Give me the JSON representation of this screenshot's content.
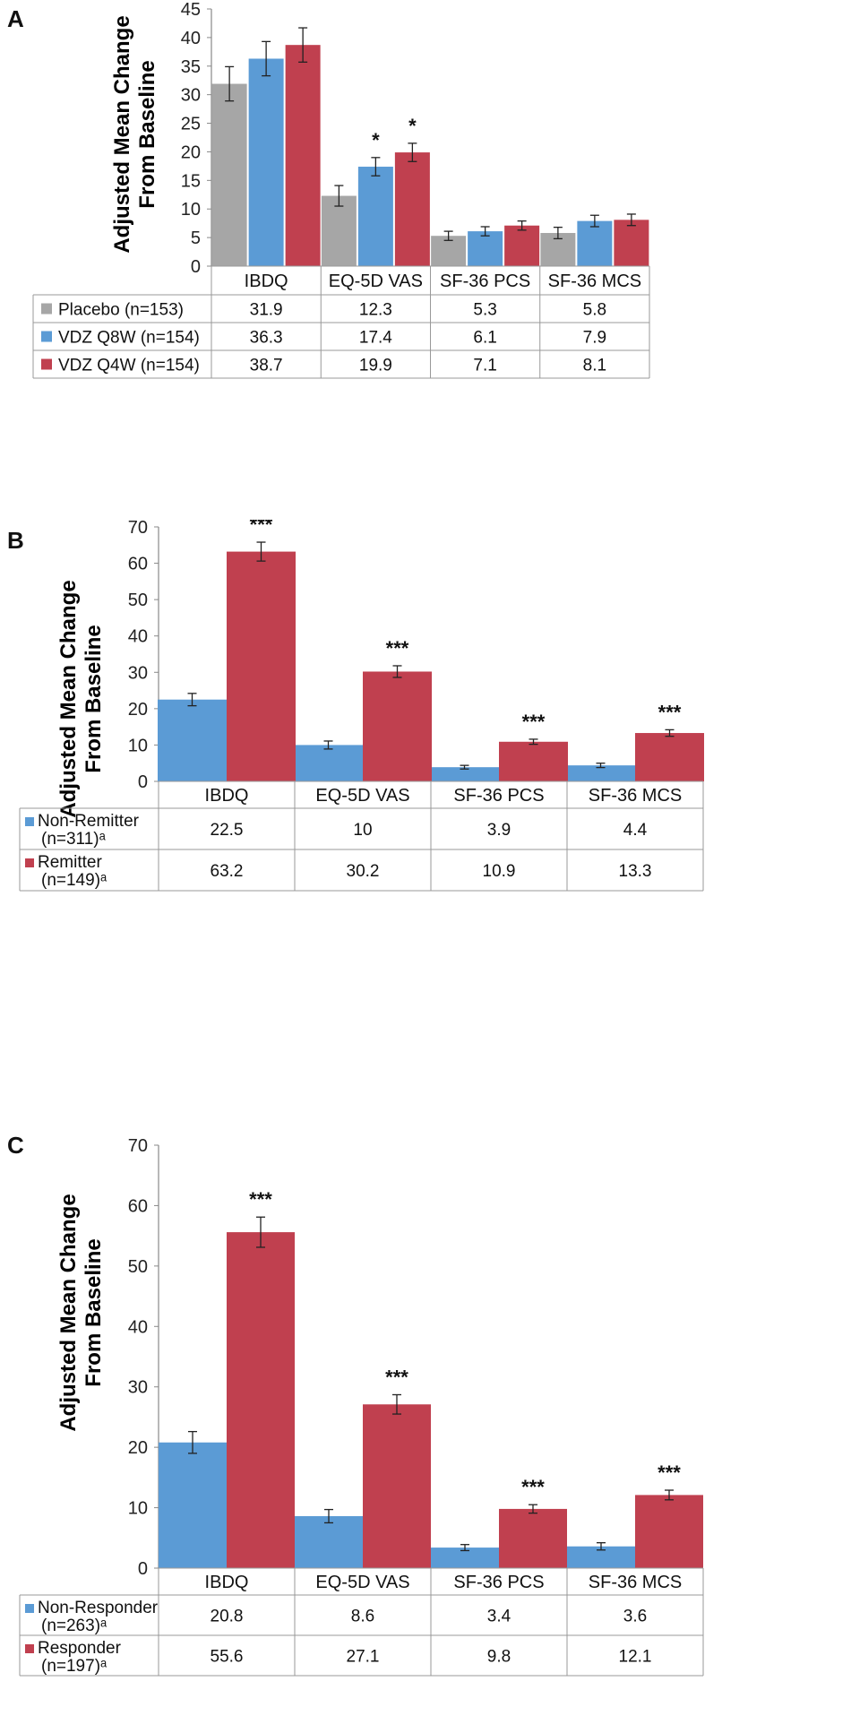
{
  "colors": {
    "placebo": "#a6a6a6",
    "blue": "#5b9bd5",
    "red": "#c0404f"
  },
  "chart_data": [
    {
      "panel": "A",
      "type": "bar",
      "ylabel": "Adjusted Mean Change From Baseline",
      "ylim": [
        0,
        45
      ],
      "yticks": [
        0,
        5,
        10,
        15,
        20,
        25,
        30,
        35,
        40,
        45
      ],
      "categories": [
        "IBDQ",
        "EQ-5D VAS",
        "SF-36 PCS",
        "SF-36 MCS"
      ],
      "series": [
        {
          "name": "Placebo (n=153)",
          "color": "#a6a6a6",
          "values": [
            31.9,
            12.3,
            5.3,
            5.8
          ],
          "errors": [
            3,
            1.8,
            0.8,
            1.0
          ]
        },
        {
          "name": "VDZ Q8W (n=154)",
          "color": "#5b9bd5",
          "values": [
            36.3,
            17.4,
            6.1,
            7.9
          ],
          "errors": [
            3,
            1.6,
            0.8,
            1.0
          ]
        },
        {
          "name": "VDZ Q4W (n=154)",
          "color": "#c0404f",
          "values": [
            38.7,
            19.9,
            7.1,
            8.1
          ],
          "errors": [
            3,
            1.6,
            0.8,
            1.0
          ]
        }
      ],
      "annotations": [
        {
          "category": 1,
          "series": 1,
          "text": "*"
        },
        {
          "category": 1,
          "series": 2,
          "text": "*"
        }
      ],
      "table": [
        [
          "31.9",
          "12.3",
          "5.3",
          "5.8"
        ],
        [
          "36.3",
          "17.4",
          "6.1",
          "7.9"
        ],
        [
          "38.7",
          "19.9",
          "7.1",
          "8.1"
        ]
      ]
    },
    {
      "panel": "B",
      "type": "bar",
      "ylabel": "Adjusted Mean Change From Baseline",
      "ylim": [
        0,
        70
      ],
      "yticks": [
        0,
        10,
        20,
        30,
        40,
        50,
        60,
        70
      ],
      "categories": [
        "IBDQ",
        "EQ-5D VAS",
        "SF-36 PCS",
        "SF-36 MCS"
      ],
      "series": [
        {
          "name": "Non-Remitter",
          "name2": "(n=311)ᵃ",
          "color": "#5b9bd5",
          "values": [
            22.5,
            10,
            3.9,
            4.4
          ],
          "errors": [
            1.7,
            1.1,
            0.5,
            0.6
          ]
        },
        {
          "name": "Remitter",
          "name2": "(n=149)ᵃ",
          "color": "#c0404f",
          "values": [
            63.2,
            30.2,
            10.9,
            13.3
          ],
          "errors": [
            2.6,
            1.6,
            0.7,
            0.9
          ]
        }
      ],
      "annotations": [
        {
          "category": 0,
          "series": 1,
          "text": "***"
        },
        {
          "category": 1,
          "series": 1,
          "text": "***"
        },
        {
          "category": 2,
          "series": 1,
          "text": "***"
        },
        {
          "category": 3,
          "series": 1,
          "text": "***"
        }
      ],
      "table": [
        [
          "22.5",
          "10",
          "3.9",
          "4.4"
        ],
        [
          "63.2",
          "30.2",
          "10.9",
          "13.3"
        ]
      ]
    },
    {
      "panel": "C",
      "type": "bar",
      "ylabel": "Adjusted Mean Change From Baseline",
      "ylim": [
        0,
        70
      ],
      "yticks": [
        0,
        10,
        20,
        30,
        40,
        50,
        60,
        70
      ],
      "categories": [
        "IBDQ",
        "EQ-5D VAS",
        "SF-36 PCS",
        "SF-36 MCS"
      ],
      "series": [
        {
          "name": "Non-Responder",
          "name2": "(n=263)ᵃ",
          "color": "#5b9bd5",
          "values": [
            20.8,
            8.6,
            3.4,
            3.6
          ],
          "errors": [
            1.8,
            1.1,
            0.5,
            0.6
          ]
        },
        {
          "name": "Responder",
          "name2": "(n=197)ᵃ",
          "color": "#c0404f",
          "values": [
            55.6,
            27.1,
            9.8,
            12.1
          ],
          "errors": [
            2.5,
            1.6,
            0.7,
            0.8
          ]
        }
      ],
      "annotations": [
        {
          "category": 0,
          "series": 1,
          "text": "***"
        },
        {
          "category": 1,
          "series": 1,
          "text": "***"
        },
        {
          "category": 2,
          "series": 1,
          "text": "***"
        },
        {
          "category": 3,
          "series": 1,
          "text": "***"
        }
      ],
      "table": [
        [
          "20.8",
          "8.6",
          "3.4",
          "3.6"
        ],
        [
          "55.6",
          "27.1",
          "9.8",
          "12.1"
        ]
      ]
    }
  ]
}
